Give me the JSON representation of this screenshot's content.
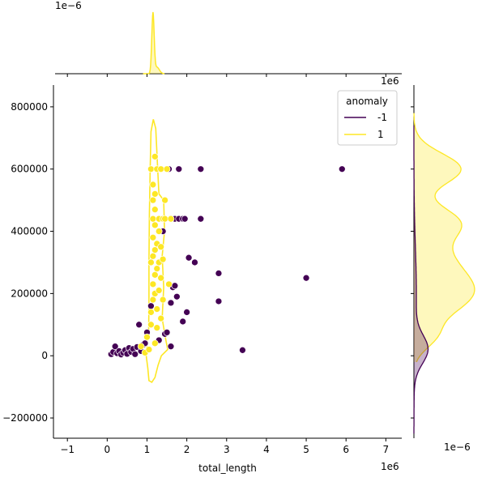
{
  "chart_data": {
    "type": "scatter",
    "xlabel": "total_length",
    "ylabel": "",
    "x_offset_text": "1e6",
    "y_offset_text": "",
    "xlim": [
      -1.35,
      7.4
    ],
    "ylim": [
      -265000,
      870000
    ],
    "x_ticks": [
      -1,
      0,
      1,
      2,
      3,
      4,
      5,
      6,
      7
    ],
    "x_tick_labels": [
      "−1",
      "0",
      "1",
      "2",
      "3",
      "4",
      "5",
      "6",
      "7"
    ],
    "y_ticks": [
      -200000,
      0,
      200000,
      400000,
      600000,
      800000
    ],
    "y_tick_labels": [
      "−200000",
      "0",
      "200000",
      "400000",
      "600000",
      "800000"
    ],
    "top_marginal_offset_text": "1e−6",
    "right_marginal_top_offset_text": "1e6",
    "right_marginal_offset_text": "1e−6",
    "legend": {
      "title": "anomaly",
      "placement": "top-right",
      "entries": [
        {
          "label": "-1",
          "color": "#440154"
        },
        {
          "label": "1",
          "color": "#fde725"
        }
      ]
    },
    "colors": {
      "anomaly": "#440154",
      "normal": "#fde725"
    },
    "series": [
      {
        "name": "-1",
        "color": "#440154",
        "points": [
          [
            0.1,
            5000
          ],
          [
            0.15,
            12000
          ],
          [
            0.2,
            30000
          ],
          [
            0.25,
            8000
          ],
          [
            0.3,
            15000
          ],
          [
            0.35,
            4000
          ],
          [
            0.4,
            10000
          ],
          [
            0.45,
            18000
          ],
          [
            0.5,
            6000
          ],
          [
            0.55,
            25000
          ],
          [
            0.6,
            12000
          ],
          [
            0.65,
            22000
          ],
          [
            0.7,
            5000
          ],
          [
            0.75,
            28000
          ],
          [
            0.8,
            100000
          ],
          [
            0.85,
            15000
          ],
          [
            0.9,
            35000
          ],
          [
            0.95,
            40000
          ],
          [
            1.0,
            75000
          ],
          [
            1.1,
            160000
          ],
          [
            1.3,
            50000
          ],
          [
            1.4,
            400000
          ],
          [
            1.45,
            70000
          ],
          [
            1.5,
            75000
          ],
          [
            1.55,
            600000
          ],
          [
            1.6,
            30000
          ],
          [
            1.6,
            170000
          ],
          [
            1.6,
            440000
          ],
          [
            1.65,
            220000
          ],
          [
            1.7,
            440000
          ],
          [
            1.7,
            225000
          ],
          [
            1.75,
            190000
          ],
          [
            1.8,
            600000
          ],
          [
            1.8,
            440000
          ],
          [
            1.9,
            440000
          ],
          [
            1.9,
            110000
          ],
          [
            1.95,
            440000
          ],
          [
            2.0,
            140000
          ],
          [
            2.05,
            315000
          ],
          [
            2.2,
            300000
          ],
          [
            2.35,
            600000
          ],
          [
            2.35,
            440000
          ],
          [
            2.8,
            265000
          ],
          [
            2.8,
            175000
          ],
          [
            3.4,
            18000
          ],
          [
            5.0,
            250000
          ],
          [
            5.9,
            600000
          ]
        ]
      },
      {
        "name": "1",
        "color": "#fde725",
        "points": [
          [
            0.85,
            30000
          ],
          [
            0.95,
            10000
          ],
          [
            1.0,
            60000
          ],
          [
            1.05,
            20000
          ],
          [
            1.1,
            100000
          ],
          [
            1.1,
            140000
          ],
          [
            1.1,
            300000
          ],
          [
            1.1,
            600000
          ],
          [
            1.15,
            180000
          ],
          [
            1.15,
            230000
          ],
          [
            1.15,
            320000
          ],
          [
            1.15,
            380000
          ],
          [
            1.15,
            440000
          ],
          [
            1.15,
            500000
          ],
          [
            1.15,
            550000
          ],
          [
            1.2,
            40000
          ],
          [
            1.2,
            200000
          ],
          [
            1.2,
            260000
          ],
          [
            1.2,
            340000
          ],
          [
            1.2,
            420000
          ],
          [
            1.2,
            470000
          ],
          [
            1.2,
            520000
          ],
          [
            1.2,
            640000
          ],
          [
            1.25,
            90000
          ],
          [
            1.25,
            150000
          ],
          [
            1.25,
            280000
          ],
          [
            1.25,
            360000
          ],
          [
            1.25,
            600000
          ],
          [
            1.3,
            210000
          ],
          [
            1.3,
            300000
          ],
          [
            1.3,
            400000
          ],
          [
            1.3,
            440000
          ],
          [
            1.35,
            120000
          ],
          [
            1.35,
            250000
          ],
          [
            1.35,
            350000
          ],
          [
            1.35,
            600000
          ],
          [
            1.4,
            180000
          ],
          [
            1.4,
            310000
          ],
          [
            1.4,
            440000
          ],
          [
            1.45,
            500000
          ],
          [
            1.45,
            440000
          ],
          [
            1.5,
            600000
          ],
          [
            1.55,
            230000
          ],
          [
            1.6,
            440000
          ]
        ]
      }
    ]
  }
}
